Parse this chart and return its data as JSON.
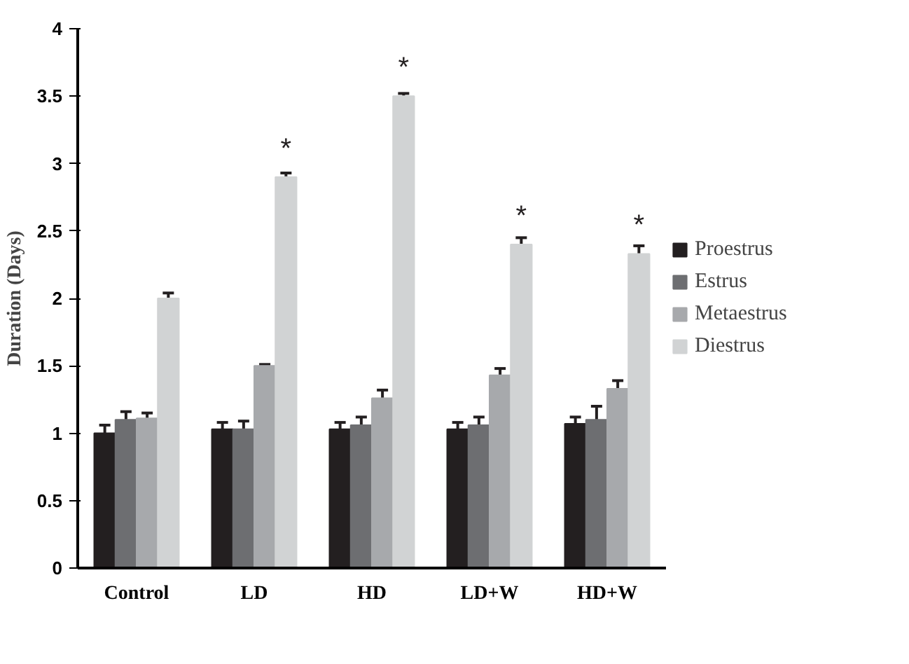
{
  "chart_data": {
    "type": "bar",
    "ylabel": "Duration (Days)",
    "categories": [
      "Control",
      "LD",
      "HD",
      "LD+W",
      "HD+W"
    ],
    "series": [
      {
        "name": "Proestrus",
        "color": "#231f20",
        "values": [
          1.0,
          1.03,
          1.03,
          1.03,
          1.07
        ],
        "errors": [
          0.06,
          0.05,
          0.05,
          0.05,
          0.05
        ]
      },
      {
        "name": "Estrus",
        "color": "#6d6e71",
        "values": [
          1.1,
          1.03,
          1.06,
          1.06,
          1.1
        ],
        "errors": [
          0.06,
          0.06,
          0.06,
          0.06,
          0.1
        ]
      },
      {
        "name": "Metaestrus",
        "color": "#a7a9ac",
        "values": [
          1.11,
          1.5,
          1.26,
          1.43,
          1.33
        ],
        "errors": [
          0.04,
          0.01,
          0.06,
          0.05,
          0.06
        ]
      },
      {
        "name": "Diestrus",
        "color": "#d1d3d4",
        "values": [
          2.0,
          2.9,
          3.5,
          2.4,
          2.33
        ],
        "errors": [
          0.04,
          0.03,
          0.02,
          0.05,
          0.06
        ],
        "value_labels": [
          null,
          "*",
          "*",
          "*",
          "*"
        ]
      }
    ],
    "ylim": [
      0,
      4
    ],
    "yticks": [
      0,
      0.5,
      1,
      1.5,
      2,
      2.5,
      3,
      3.5,
      4
    ],
    "grid": false,
    "legend": "right"
  }
}
